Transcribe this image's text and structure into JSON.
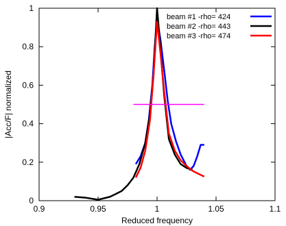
{
  "chart_data": {
    "type": "line",
    "title": "",
    "xlabel": "Reduced frequency",
    "ylabel": "|Acc/F| normalized",
    "xlim": [
      0.9,
      1.1
    ],
    "ylim": [
      0,
      1
    ],
    "xticks": [
      0.9,
      0.95,
      1,
      1.05,
      1.1
    ],
    "xtick_labels": [
      "0.9",
      "0.95",
      "1",
      "1.05",
      "1.1"
    ],
    "yticks": [
      0,
      0.2,
      0.4,
      0.6,
      0.8,
      1
    ],
    "ytick_labels": [
      "0",
      "0.2",
      "0.4",
      "0.6",
      "0.8",
      "1"
    ],
    "grid": false,
    "legend_position": "top-right",
    "series": [
      {
        "name": "beam #1 -rho= 424",
        "color": "#0000ff",
        "x": [
          0.982,
          0.986,
          0.99,
          0.993,
          0.996,
          0.998,
          1.0,
          1.003,
          1.006,
          1.009,
          1.012,
          1.016,
          1.02,
          1.025,
          1.028,
          1.031,
          1.034,
          1.037,
          1.04
        ],
        "y": [
          0.19,
          0.23,
          0.3,
          0.42,
          0.6,
          0.8,
          0.95,
          0.83,
          0.68,
          0.52,
          0.4,
          0.31,
          0.24,
          0.18,
          0.16,
          0.18,
          0.23,
          0.29,
          0.29
        ]
      },
      {
        "name": "beam #2 -rho= 443",
        "color": "#000000",
        "x": [
          0.93,
          0.94,
          0.95,
          0.96,
          0.965,
          0.97,
          0.975,
          0.98,
          0.985,
          0.99,
          0.994,
          0.997,
          1.0,
          1.003,
          1.006,
          1.01,
          1.015,
          1.02,
          1.025,
          1.03
        ],
        "y": [
          0.02,
          0.015,
          0.005,
          0.02,
          0.035,
          0.05,
          0.08,
          0.12,
          0.19,
          0.3,
          0.45,
          0.65,
          1.0,
          0.78,
          0.55,
          0.32,
          0.24,
          0.19,
          0.17,
          0.16
        ]
      },
      {
        "name": "beam #3 -rho= 474",
        "color": "#ff0000",
        "x": [
          0.982,
          0.986,
          0.99,
          0.994,
          0.997,
          1.0,
          1.003,
          1.006,
          1.01,
          1.015,
          1.02,
          1.025,
          1.03,
          1.035,
          1.04
        ],
        "y": [
          0.12,
          0.17,
          0.26,
          0.42,
          0.65,
          0.93,
          0.76,
          0.57,
          0.35,
          0.26,
          0.21,
          0.18,
          0.155,
          0.14,
          0.125
        ]
      },
      {
        "name": "",
        "color": "#ff00ff",
        "x": [
          0.98,
          1.04
        ],
        "y": [
          0.5,
          0.5
        ]
      }
    ]
  }
}
